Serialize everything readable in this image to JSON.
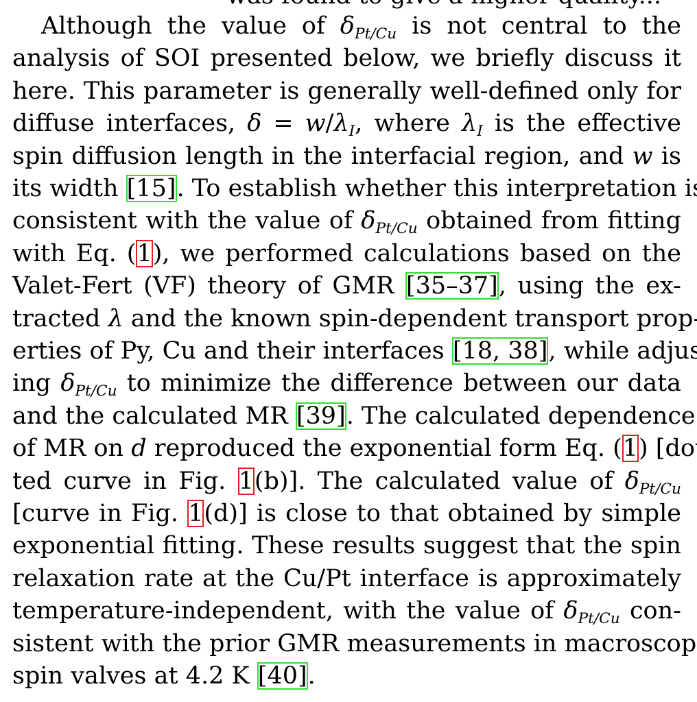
{
  "top_cut_text": "was found to give a higher quality...",
  "lines": [
    [
      {
        "t": "Although the value of "
      },
      {
        "t": "δ",
        "m": 1
      },
      {
        "t": "Pt/Cu",
        "sub": 1
      },
      {
        "t": " is not central to the"
      }
    ],
    [
      {
        "t": "analysis of SOI presented below, we briefly discuss it"
      }
    ],
    [
      {
        "t": "here. This parameter is generally well-defined only for"
      }
    ],
    [
      {
        "t": "diffuse interfaces, "
      },
      {
        "t": "δ",
        "m": 1
      },
      {
        "t": " = "
      },
      {
        "t": "w",
        "m": 1
      },
      {
        "t": "/"
      },
      {
        "t": "λ",
        "m": 1
      },
      {
        "t": "I",
        "sub": 1
      },
      {
        "t": ", where "
      },
      {
        "t": "λ",
        "m": 1
      },
      {
        "t": "I",
        "sub": 1
      },
      {
        "t": " is the effective"
      }
    ],
    [
      {
        "t": "spin diffusion length in the interfacial region, and "
      },
      {
        "t": "w",
        "m": 1
      },
      {
        "t": " is"
      }
    ],
    [
      {
        "t": "its width "
      },
      {
        "t": "[15]",
        "cite": 1
      },
      {
        "t": ". To establish whether this interpretation is"
      }
    ],
    [
      {
        "t": "consistent with the value of "
      },
      {
        "t": "δ",
        "m": 1
      },
      {
        "t": "Pt/Cu",
        "sub": 1
      },
      {
        "t": " obtained from fitting"
      }
    ],
    [
      {
        "t": "with Eq. ("
      },
      {
        "t": "1",
        "ref": 1
      },
      {
        "t": "), we performed calculations based on the"
      }
    ],
    [
      {
        "t": "Valet-Fert (VF) theory of GMR "
      },
      {
        "t": "[35–37]",
        "cite": 1
      },
      {
        "t": ", using the ex-"
      }
    ],
    [
      {
        "t": "tracted "
      },
      {
        "t": "λ",
        "m": 1
      },
      {
        "t": " and the known spin-dependent transport prop-"
      }
    ],
    [
      {
        "t": "erties of Py, Cu and their interfaces "
      },
      {
        "t": "[18, 38]",
        "cite": 1
      },
      {
        "t": ", while adjust-"
      }
    ],
    [
      {
        "t": "ing "
      },
      {
        "t": "δ",
        "m": 1
      },
      {
        "t": "Pt/Cu",
        "sub": 1
      },
      {
        "t": " to minimize the difference between our data"
      }
    ],
    [
      {
        "t": "and the calculated MR "
      },
      {
        "t": "[39]",
        "cite": 1
      },
      {
        "t": ". The calculated dependence"
      }
    ],
    [
      {
        "t": "of MR on "
      },
      {
        "t": "d",
        "m": 1
      },
      {
        "t": " reproduced the exponential form Eq. ("
      },
      {
        "t": "1",
        "ref": 1
      },
      {
        "t": ") [dot-"
      }
    ],
    [
      {
        "t": "ted curve in Fig. "
      },
      {
        "t": "1",
        "ref": 1
      },
      {
        "t": "(b)]. The calculated value of "
      },
      {
        "t": "δ",
        "m": 1
      },
      {
        "t": "Pt/Cu",
        "sub": 1
      }
    ],
    [
      {
        "t": "[curve in Fig. "
      },
      {
        "t": "1",
        "ref": 1
      },
      {
        "t": "(d)] is close to that obtained by simple"
      }
    ],
    [
      {
        "t": "exponential fitting. These results suggest that the spin"
      }
    ],
    [
      {
        "t": "relaxation rate at the Cu/Pt interface is approximately"
      }
    ],
    [
      {
        "t": "temperature-independent, with the value of "
      },
      {
        "t": "δ",
        "m": 1
      },
      {
        "t": "Pt/Cu",
        "sub": 1
      },
      {
        "t": " con-"
      }
    ],
    [
      {
        "t": "sistent with the prior GMR measurements in macroscopic"
      }
    ],
    [
      {
        "t": "spin valves at 4.2 K "
      },
      {
        "t": "[40]",
        "cite": 1
      },
      {
        "t": "."
      }
    ]
  ]
}
